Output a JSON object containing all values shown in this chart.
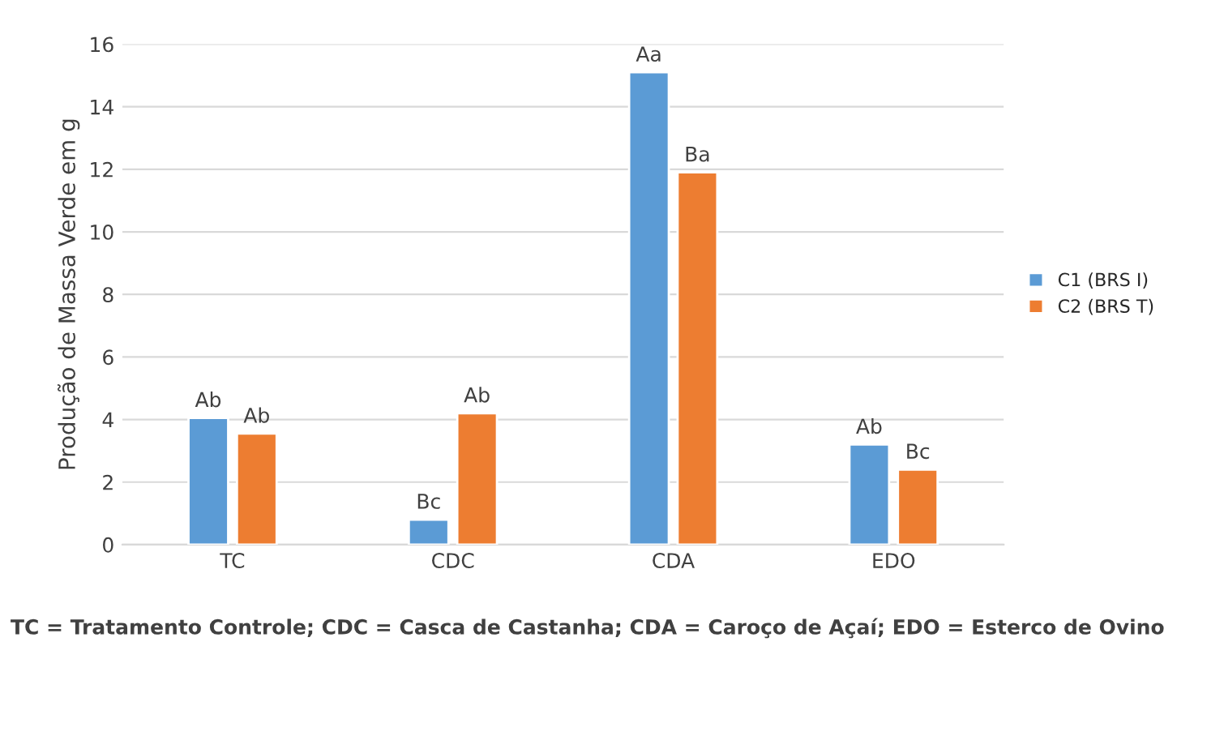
{
  "chart_data": {
    "type": "bar",
    "ylabel": "Produção de Massa Verde em g",
    "categories": [
      "TC",
      "CDC",
      "CDA",
      "EDO"
    ],
    "series": [
      {
        "name": "C1 (BRS I)",
        "color": "#5b9bd5",
        "values": [
          4.05,
          0.8,
          15.1,
          3.2
        ],
        "value_labels": [
          "Ab",
          "Bc",
          "Aa",
          "Ab"
        ]
      },
      {
        "name": "C2 (BRS T)",
        "color": "#ed7d31",
        "values": [
          3.55,
          4.2,
          11.9,
          2.4
        ],
        "value_labels": [
          "Ab",
          "Ab",
          "Ba",
          "Bc"
        ]
      }
    ],
    "ylim": [
      0,
      16
    ],
    "yticks": [
      0,
      2,
      4,
      6,
      8,
      10,
      12,
      14,
      16
    ],
    "grid": "y",
    "legend": "right",
    "annotations": [
      "TC = Tratamento Controle; CDC = Casca de Castanha; CDA = Caroço de Açaí; EDO = Esterco de Ovino"
    ]
  }
}
